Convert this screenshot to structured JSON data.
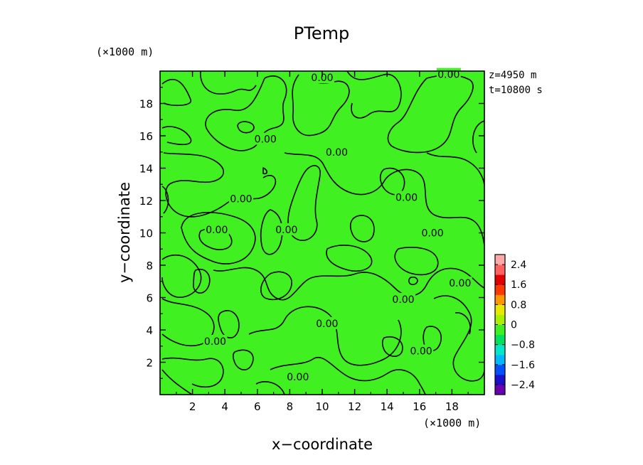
{
  "chart_data": {
    "type": "heatmap",
    "title": "PTemp",
    "xlabel": "x−coordinate",
    "ylabel": "y−coordinate",
    "x_unit": "(×1000 m)",
    "y_unit": "(×1000 m)",
    "annotations": [
      "z=4950 m",
      "t=10800 s"
    ],
    "xlim": [
      0,
      20
    ],
    "ylim": [
      0,
      20
    ],
    "xticks": [
      2,
      4,
      6,
      8,
      10,
      12,
      14,
      16,
      18
    ],
    "yticks": [
      2,
      4,
      6,
      8,
      10,
      12,
      14,
      16,
      18
    ],
    "field_value": 0,
    "contour_level_label": "0.00",
    "contour_labels": [
      {
        "x": 10.0,
        "y": 19.6
      },
      {
        "x": 17.8,
        "y": 19.8
      },
      {
        "x": 6.5,
        "y": 15.8
      },
      {
        "x": 10.9,
        "y": 15.0
      },
      {
        "x": 5.0,
        "y": 12.1
      },
      {
        "x": 15.2,
        "y": 12.2
      },
      {
        "x": 3.5,
        "y": 10.2
      },
      {
        "x": 7.8,
        "y": 10.2
      },
      {
        "x": 16.8,
        "y": 10.0
      },
      {
        "x": 18.5,
        "y": 6.9
      },
      {
        "x": 15.0,
        "y": 5.9
      },
      {
        "x": 10.3,
        "y": 4.4
      },
      {
        "x": 3.4,
        "y": 3.3
      },
      {
        "x": 8.5,
        "y": 1.1
      },
      {
        "x": 16.1,
        "y": 2.7
      }
    ],
    "colorbar": {
      "ticks": [
        "2.4",
        "1.6",
        "0.8",
        "0",
        "−0.8",
        "−1.6",
        "−2.4"
      ],
      "tick_values": [
        2.4,
        1.6,
        0.8,
        0,
        -0.8,
        -1.6,
        -2.4
      ],
      "range": [
        -2.8,
        2.8
      ],
      "colors": [
        "#6a00b0",
        "#1a10c8",
        "#0050ff",
        "#00b8ff",
        "#00e8c8",
        "#00e060",
        "#40f020",
        "#a8f000",
        "#e8e800",
        "#ff9800",
        "#ff3800",
        "#e00000",
        "#ff6060",
        "#ffa8a8"
      ]
    }
  }
}
